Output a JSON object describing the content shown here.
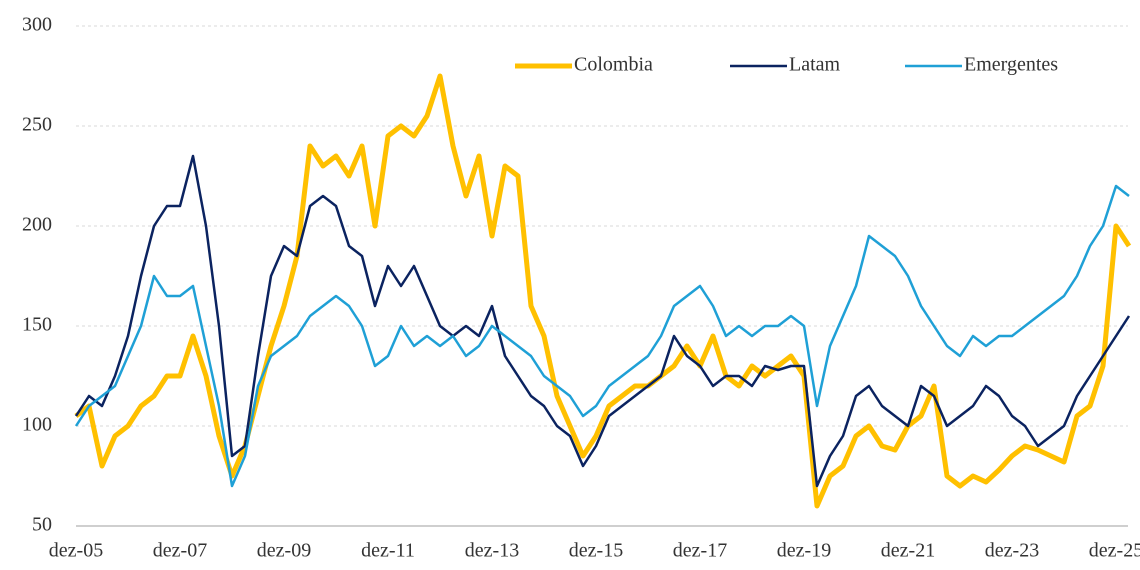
{
  "chart_data": {
    "type": "line",
    "categories": [
      "dez-05",
      null,
      null,
      null,
      null,
      null,
      null,
      null,
      "dez-07",
      null,
      null,
      null,
      null,
      null,
      null,
      null,
      "dez-09",
      null,
      null,
      null,
      null,
      null,
      null,
      null,
      "dez-11",
      null,
      null,
      null,
      null,
      null,
      null,
      null,
      "dez-13",
      null,
      null,
      null,
      null,
      null,
      null,
      null,
      "dez-15",
      null,
      null,
      null,
      null,
      null,
      null,
      null,
      "dez-17",
      null,
      null,
      null,
      null,
      null,
      null,
      null,
      "dez-19",
      null,
      null,
      null,
      null,
      null,
      null,
      null,
      "dez-21",
      null,
      null,
      null,
      null,
      null,
      null,
      null,
      "dez-23",
      null,
      null,
      null,
      null,
      null,
      null,
      null,
      "dez-25",
      null
    ],
    "series": [
      {
        "name": "Colombia",
        "color": "#FFC000",
        "values": [
          105,
          110,
          80,
          95,
          100,
          110,
          115,
          125,
          125,
          145,
          125,
          95,
          75,
          90,
          115,
          140,
          160,
          185,
          240,
          230,
          235,
          225,
          240,
          200,
          245,
          250,
          245,
          255,
          275,
          240,
          215,
          235,
          195,
          230,
          225,
          160,
          145,
          115,
          100,
          85,
          95,
          110,
          115,
          120,
          120,
          125,
          130,
          140,
          130,
          145,
          125,
          120,
          130,
          125,
          130,
          135,
          125,
          60,
          75,
          80,
          95,
          100,
          90,
          88,
          100,
          105,
          120,
          75,
          70,
          75,
          72,
          78,
          85,
          90,
          88,
          85,
          82,
          105,
          110,
          130,
          200,
          190
        ]
      },
      {
        "name": "Latam",
        "color": "#0B2360",
        "values": [
          105,
          115,
          110,
          125,
          145,
          175,
          200,
          210,
          210,
          235,
          200,
          150,
          85,
          90,
          135,
          175,
          190,
          185,
          210,
          215,
          210,
          190,
          185,
          160,
          180,
          170,
          180,
          165,
          150,
          145,
          150,
          145,
          160,
          135,
          125,
          115,
          110,
          100,
          95,
          80,
          90,
          105,
          110,
          115,
          120,
          125,
          145,
          135,
          130,
          120,
          125,
          125,
          120,
          130,
          128,
          130,
          130,
          70,
          85,
          95,
          115,
          120,
          110,
          105,
          100,
          120,
          115,
          100,
          105,
          110,
          120,
          115,
          105,
          100,
          90,
          95,
          100,
          115,
          125,
          135,
          145,
          155
        ]
      },
      {
        "name": "Emergentes",
        "color": "#1FA0D6",
        "values": [
          100,
          110,
          115,
          120,
          135,
          150,
          175,
          165,
          165,
          170,
          140,
          110,
          70,
          85,
          120,
          135,
          140,
          145,
          155,
          160,
          165,
          160,
          150,
          130,
          135,
          150,
          140,
          145,
          140,
          145,
          135,
          140,
          150,
          145,
          140,
          135,
          125,
          120,
          115,
          105,
          110,
          120,
          125,
          130,
          135,
          145,
          160,
          165,
          170,
          160,
          145,
          150,
          145,
          150,
          150,
          155,
          150,
          110,
          140,
          155,
          170,
          195,
          190,
          185,
          175,
          160,
          150,
          140,
          135,
          145,
          140,
          145,
          145,
          150,
          155,
          160,
          165,
          175,
          190,
          200,
          220,
          215
        ]
      }
    ],
    "ylim": [
      50,
      300
    ],
    "yticks": [
      50,
      100,
      150,
      200,
      250,
      300
    ],
    "grid": true,
    "legend": "upper right"
  }
}
